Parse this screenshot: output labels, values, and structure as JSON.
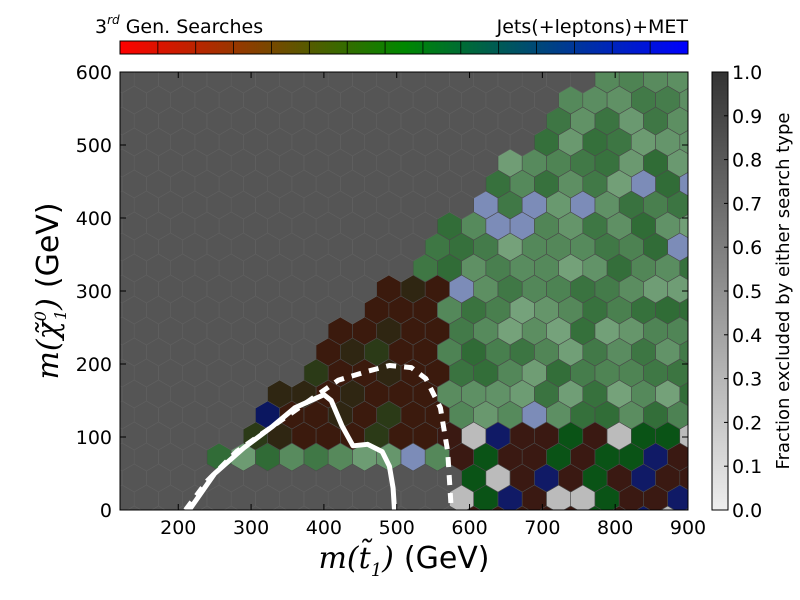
{
  "chart_data": {
    "type": "heatmap",
    "title_left": "3rd Gen. Searches",
    "title_left_main": "3",
    "title_left_sup": "rd",
    "title_left_rest": " Gen. Searches",
    "title_right": "Jets(+leptons)+MET",
    "xlabel_func": "m(",
    "xlabel_sym": "t̃",
    "xlabel_sub": "1",
    "xlabel_close": ")",
    "xlabel_unit": "(GeV)",
    "ylabel_func": "m(",
    "ylabel_sym": "χ̃",
    "ylabel_sub": "1",
    "ylabel_sup": "0",
    "ylabel_close": ")",
    "ylabel_unit": "(GeV)",
    "colorbar_label": "Fraction excluded by either search type",
    "xlim": [
      120,
      900
    ],
    "ylim": [
      0,
      600
    ],
    "xticks": [
      "200",
      "300",
      "400",
      "500",
      "600",
      "700",
      "800",
      "900"
    ],
    "yticks": [
      "0",
      "100",
      "200",
      "300",
      "400",
      "500",
      "600"
    ],
    "cbticks": [
      "0.0",
      "0.1",
      "0.2",
      "0.3",
      "0.4",
      "0.5",
      "0.6",
      "0.7",
      "0.8",
      "0.9",
      "1.0"
    ],
    "cblim": [
      0.0,
      1.0
    ],
    "legend_gradient": [
      "#ff0000",
      "#008800",
      "#0000ff"
    ],
    "background_color": "#555555",
    "series": [
      {
        "name": "solid",
        "style": "solid",
        "color": "#ffffff",
        "x": [
          215,
          250,
          290,
          330,
          360,
          400,
          410,
          425,
          440,
          460,
          480,
          490,
          495,
          497
        ],
        "y": [
          0,
          50,
          85,
          115,
          140,
          158,
          150,
          115,
          88,
          90,
          80,
          60,
          30,
          0
        ]
      },
      {
        "name": "dashed",
        "style": "dashed",
        "color": "#ffffff",
        "x": [
          210,
          240,
          280,
          330,
          380,
          420,
          460,
          490,
          520,
          540,
          560,
          570,
          575
        ],
        "y": [
          0,
          40,
          80,
          115,
          150,
          178,
          190,
          198,
          195,
          180,
          140,
          80,
          0
        ]
      }
    ]
  }
}
